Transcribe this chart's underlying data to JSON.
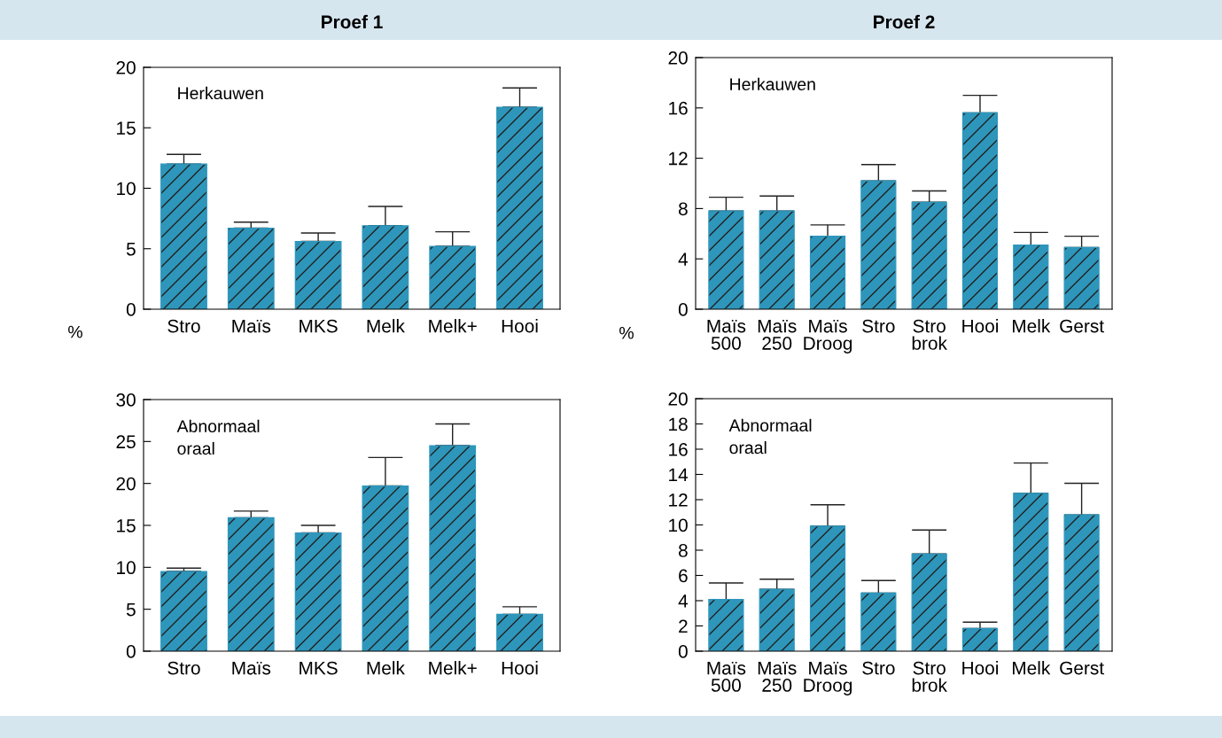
{
  "chart_data": [
    {
      "type": "bar",
      "title": "Proef 1",
      "ylabel": "%",
      "annotations": [
        "Herkauwen"
      ],
      "categories": [
        "Stro",
        "Maïs",
        "MKS",
        "Melk",
        "Melk+",
        "Hooi"
      ],
      "values": [
        12.0,
        6.7,
        5.6,
        6.9,
        5.2,
        16.7
      ],
      "errors": [
        [
          12.0,
          12.8
        ],
        [
          6.7,
          7.2
        ],
        [
          5.6,
          6.3
        ],
        [
          6.9,
          8.5
        ],
        [
          5.2,
          6.4
        ],
        [
          16.7,
          18.3
        ]
      ],
      "color": "#2e96bb",
      "ylim": [
        0,
        20
      ],
      "yticks": [
        0,
        5,
        10,
        15,
        20
      ],
      "grid": false,
      "legend": false
    },
    {
      "type": "bar",
      "title": "Proef 2",
      "ylabel": "%",
      "annotations": [
        "Herkauwen"
      ],
      "categories": [
        "Maïs\n500",
        "Maïs\n250",
        "Maïs\nDroog",
        "Stro",
        "Stro\nbrok",
        "Hooi",
        "Melk",
        "Gerst"
      ],
      "values": [
        7.8,
        7.8,
        5.8,
        10.2,
        8.5,
        15.6,
        5.1,
        4.9
      ],
      "errors": [
        [
          7.8,
          8.9
        ],
        [
          7.8,
          9.0
        ],
        [
          5.8,
          6.7
        ],
        [
          10.2,
          11.5
        ],
        [
          8.5,
          9.4
        ],
        [
          15.6,
          17.0
        ],
        [
          5.1,
          6.1
        ],
        [
          4.9,
          5.8
        ]
      ],
      "color": "#2e96bb",
      "ylim": [
        0,
        20
      ],
      "yticks": [
        0,
        4,
        8,
        12,
        16,
        20
      ],
      "grid": false,
      "legend": false
    },
    {
      "type": "bar",
      "annotations": [
        "Abnormaal\noraal"
      ],
      "categories": [
        "Stro",
        "Maïs",
        "MKS",
        "Melk",
        "Melk+",
        "Hooi"
      ],
      "values": [
        9.5,
        15.9,
        14.1,
        19.7,
        24.5,
        4.4
      ],
      "errors": [
        [
          9.5,
          9.9
        ],
        [
          15.9,
          16.7
        ],
        [
          14.1,
          15.0
        ],
        [
          19.7,
          23.1
        ],
        [
          24.5,
          27.1
        ],
        [
          4.4,
          5.3
        ]
      ],
      "color": "#2e96bb",
      "ylim": [
        0,
        30
      ],
      "yticks": [
        0,
        5,
        10,
        15,
        20,
        25,
        30
      ],
      "grid": false,
      "legend": false
    },
    {
      "type": "bar",
      "annotations": [
        "Abnormaal\noraal"
      ],
      "categories": [
        "Maïs\n500",
        "Maïs\n250",
        "Maïs\nDroog",
        "Stro",
        "Stro\nbrok",
        "Hooi",
        "Melk",
        "Gerst"
      ],
      "values": [
        4.1,
        4.9,
        9.9,
        4.6,
        7.7,
        1.8,
        12.5,
        10.8
      ],
      "errors": [
        [
          4.1,
          5.4
        ],
        [
          4.9,
          5.7
        ],
        [
          9.9,
          11.6
        ],
        [
          4.6,
          5.6
        ],
        [
          7.7,
          9.6
        ],
        [
          1.8,
          2.3
        ],
        [
          12.5,
          14.9
        ],
        [
          10.8,
          13.3
        ]
      ],
      "color": "#2e96bb",
      "ylim": [
        0,
        20
      ],
      "yticks": [
        0,
        2,
        4,
        6,
        8,
        10,
        12,
        14,
        16,
        18,
        20
      ],
      "grid": false,
      "legend": false
    }
  ]
}
